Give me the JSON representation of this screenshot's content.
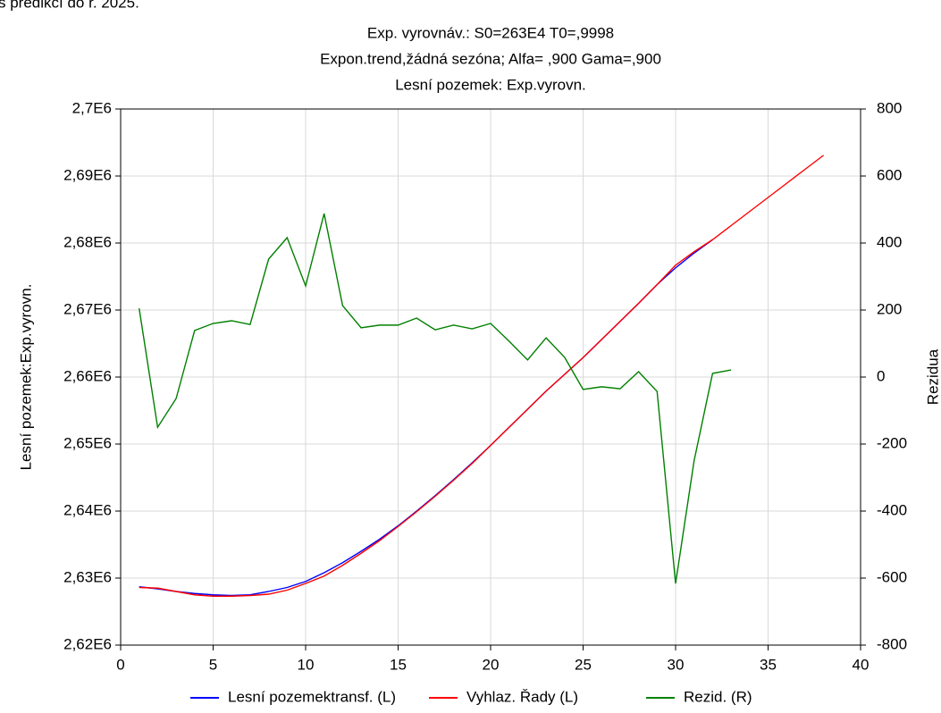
{
  "caption_top": "s predikcí do r. 2025.",
  "chart_data": {
    "type": "line",
    "title": "Exp. vyrovnáv.:  S0=263E4 T0=,9998",
    "subtitle": "Expon.trend,žádná sezóna; Alfa=  ,900 Gama=,900",
    "subtitle2": "Lesní pozemek: Exp.vyrovn.",
    "ylabel": "Lesní pozemek:Exp.vyrovn.",
    "y2label": "Rezidua",
    "xlim": [
      0,
      40
    ],
    "xticks": [
      0,
      5,
      10,
      15,
      20,
      25,
      30,
      35,
      40
    ],
    "ylim": [
      2620000,
      2700000
    ],
    "yticks": [
      {
        "value": 2620000,
        "label": "2,62E6"
      },
      {
        "value": 2630000,
        "label": "2,63E6"
      },
      {
        "value": 2640000,
        "label": "2,64E6"
      },
      {
        "value": 2650000,
        "label": "2,65E6"
      },
      {
        "value": 2660000,
        "label": "2,66E6"
      },
      {
        "value": 2670000,
        "label": "2,67E6"
      },
      {
        "value": 2680000,
        "label": "2,68E6"
      },
      {
        "value": 2690000,
        "label": "2,69E6"
      },
      {
        "value": 2700000,
        "label": "2,7E6"
      }
    ],
    "y2lim": [
      -800,
      800
    ],
    "y2ticks": [
      -800,
      -600,
      -400,
      -200,
      0,
      200,
      400,
      600,
      800
    ],
    "grid": true,
    "legend": "bottom",
    "series": [
      {
        "name": "Lesní pozemektransf. (L)",
        "color": "#0000ff",
        "x": [
          1,
          2,
          3,
          4,
          5,
          6,
          7,
          8,
          9,
          10,
          11,
          12,
          13,
          14,
          15,
          16,
          17,
          18,
          19,
          20,
          21,
          22,
          23,
          24,
          25,
          26,
          27,
          28,
          29,
          30,
          31,
          32
        ],
        "values": [
          2628700,
          2628400,
          2628000,
          2627700,
          2627500,
          2627400,
          2627500,
          2628000,
          2628600,
          2629500,
          2630800,
          2632300,
          2634000,
          2635800,
          2637800,
          2640000,
          2642300,
          2644700,
          2647200,
          2649800,
          2652500,
          2655200,
          2657900,
          2660400,
          2662900,
          2665600,
          2668300,
          2671000,
          2673800,
          2676300,
          2678500,
          2680500
        ]
      },
      {
        "name": "Vyhlaz. Řady (L)",
        "color": "#ff0000",
        "x": [
          1,
          2,
          3,
          4,
          5,
          6,
          7,
          8,
          9,
          10,
          11,
          12,
          13,
          14,
          15,
          16,
          17,
          18,
          19,
          20,
          21,
          22,
          23,
          24,
          25,
          26,
          27,
          28,
          29,
          30,
          31,
          32,
          33,
          34,
          35,
          36,
          37,
          38
        ],
        "values": [
          2628600,
          2628500,
          2628000,
          2627500,
          2627300,
          2627300,
          2627400,
          2627600,
          2628200,
          2629200,
          2630300,
          2631900,
          2633700,
          2635600,
          2637700,
          2639900,
          2642200,
          2644600,
          2647100,
          2649800,
          2652500,
          2655200,
          2657900,
          2660400,
          2662900,
          2665600,
          2668300,
          2671000,
          2673800,
          2676700,
          2678700,
          2680500,
          2682600,
          2684700,
          2686800,
          2688900,
          2691000,
          2693100
        ]
      },
      {
        "name": "Rezid. (R)",
        "color": "#008000",
        "axis": "y2",
        "x": [
          1,
          2,
          3,
          4,
          5,
          6,
          7,
          8,
          9,
          10,
          11,
          12,
          13,
          14,
          15,
          16,
          17,
          18,
          19,
          20,
          21,
          22,
          23,
          24,
          25,
          26,
          27,
          28,
          29,
          30,
          31,
          32,
          33
        ],
        "values": [
          205,
          -150,
          -64,
          139,
          160,
          168,
          157,
          352,
          416,
          272,
          488,
          213,
          147,
          155,
          155,
          176,
          141,
          155,
          144,
          160,
          107,
          51,
          117,
          59,
          -37,
          -29,
          -35,
          16,
          -43,
          -616,
          -250,
          11,
          21
        ]
      }
    ]
  }
}
